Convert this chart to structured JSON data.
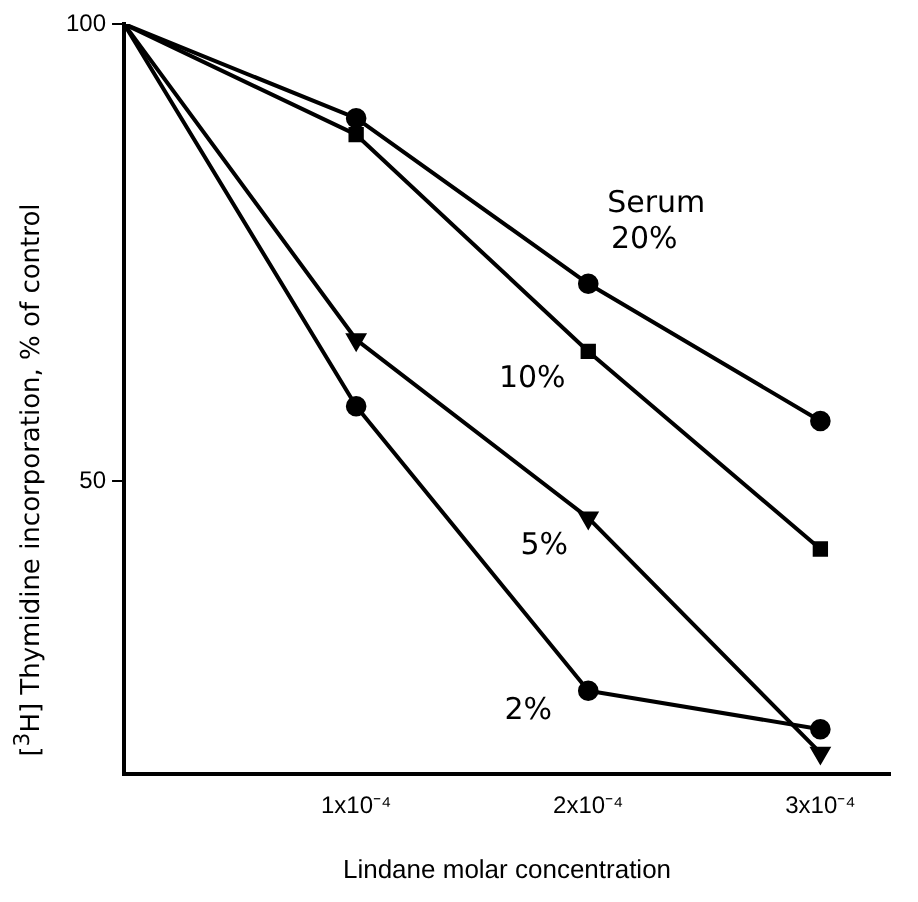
{
  "chart_data": {
    "type": "line",
    "xlabel": "Lindane molar concentration",
    "ylabel": "[$^{3}$H] Thymidine incorporation, % of control",
    "x": [
      0,
      0.0001,
      0.0002,
      0.0003
    ],
    "xlim": [
      0,
      0.00033
    ],
    "xticks": [
      {
        "value": 0.0001,
        "label": "1x10⁻⁴"
      },
      {
        "value": 0.0002,
        "label": "2x10⁻⁴"
      },
      {
        "value": 0.0003,
        "label": "3x10⁻⁴"
      }
    ],
    "ylim": [
      18,
      100
    ],
    "yticks": [
      50,
      100
    ],
    "grid": false,
    "legend": false,
    "line_style": "solid",
    "annotations": [
      "Serum"
    ],
    "series": [
      {
        "name": "20%",
        "color": "#000000",
        "marker": "circle",
        "values": [
          100,
          89.7,
          71.6,
          56.6
        ]
      },
      {
        "name": "10%",
        "color": "#000000",
        "marker": "square",
        "values": [
          100,
          87.9,
          64.2,
          42.6
        ]
      },
      {
        "name": "5%",
        "color": "#000000",
        "marker": "triangle",
        "values": [
          100,
          65.5,
          46,
          20.3
        ]
      },
      {
        "name": "2%",
        "color": "#000000",
        "marker": "circle",
        "values": [
          100,
          58.2,
          27.1,
          22.9
        ]
      }
    ]
  }
}
